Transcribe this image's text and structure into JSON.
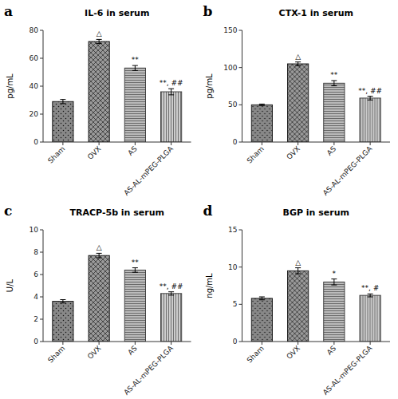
{
  "chart_data": [
    {
      "type": "bar",
      "title": "IL-6 in serum",
      "label": "a",
      "ylabel": "pg/mL",
      "categories": [
        "Sham",
        "OVX",
        "AS",
        "AS-AL-mPEG-PLGA"
      ],
      "values": [
        29,
        72,
        53,
        36
      ],
      "errors": [
        1.5,
        1.5,
        1.8,
        2.2
      ],
      "annotations": [
        null,
        "△",
        "**",
        "**, ##"
      ],
      "colors": [
        "#888888",
        "#999999",
        "#bbbbbb",
        "#cccccc"
      ],
      "ylim": [
        0,
        80
      ],
      "yticks": [
        0,
        20,
        40,
        60,
        80
      ],
      "grid": false
    },
    {
      "type": "bar",
      "title": "CTX-1 in serum",
      "label": "b",
      "ylabel": "pg/mL",
      "categories": [
        "Sham",
        "OVX",
        "AS",
        "AS-AL-mPEG-PLGA"
      ],
      "values": [
        50,
        105,
        79,
        59
      ],
      "errors": [
        1.0,
        2.5,
        3.5,
        2.5
      ],
      "annotations": [
        null,
        "△",
        "**",
        "**, ##"
      ],
      "colors": [
        "#888888",
        "#999999",
        "#bbbbbb",
        "#cccccc"
      ],
      "ylim": [
        0,
        150
      ],
      "yticks": [
        0,
        50,
        100,
        150
      ],
      "grid": false
    },
    {
      "type": "bar",
      "title": "TRACP-5b in serum",
      "label": "c",
      "ylabel": "U/L",
      "categories": [
        "Sham",
        "OVX",
        "AS",
        "AS-AL-mPEG-PLGA"
      ],
      "values": [
        3.6,
        7.7,
        6.4,
        4.3
      ],
      "errors": [
        0.15,
        0.2,
        0.2,
        0.15
      ],
      "annotations": [
        null,
        "△",
        "**",
        "**, ##"
      ],
      "colors": [
        "#888888",
        "#999999",
        "#bbbbbb",
        "#cccccc"
      ],
      "ylim": [
        0,
        10
      ],
      "yticks": [
        0,
        2,
        4,
        6,
        8,
        10
      ],
      "grid": false
    },
    {
      "type": "bar",
      "title": "BGP in serum",
      "label": "d",
      "ylabel": "ng/mL",
      "categories": [
        "Sham",
        "OVX",
        "AS",
        "AS-AL-mPEG-PLGA"
      ],
      "values": [
        5.8,
        9.5,
        8.0,
        6.2
      ],
      "errors": [
        0.2,
        0.4,
        0.4,
        0.2
      ],
      "annotations": [
        null,
        "△",
        "*",
        "**, #"
      ],
      "colors": [
        "#888888",
        "#999999",
        "#bbbbbb",
        "#cccccc"
      ],
      "ylim": [
        0,
        15
      ],
      "yticks": [
        0,
        5,
        10,
        15
      ],
      "grid": false
    }
  ]
}
